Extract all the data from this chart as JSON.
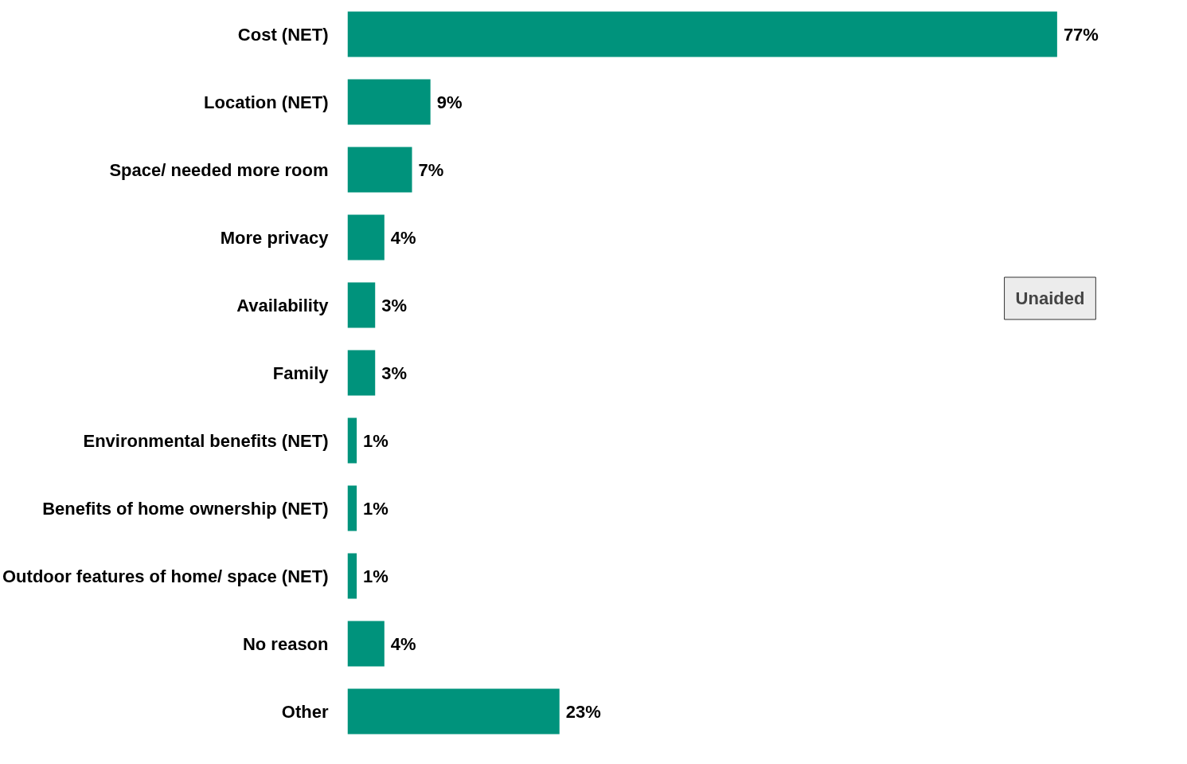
{
  "chart_data": {
    "type": "bar",
    "orientation": "horizontal",
    "categories": [
      "Cost (NET)",
      "Location (NET)",
      "Space/ needed more room",
      "More privacy",
      "Availability",
      "Family",
      "Environmental benefits (NET)",
      "Benefits of home ownership (NET)",
      "Outdoor features of home/ space (NET)",
      "No reason",
      "Other"
    ],
    "values": [
      77,
      9,
      7,
      4,
      3,
      3,
      1,
      1,
      1,
      4,
      23
    ],
    "value_labels": [
      "77%",
      "9%",
      "7%",
      "4%",
      "3%",
      "3%",
      "1%",
      "1%",
      "1%",
      "4%",
      "23%"
    ],
    "color": "#00937c",
    "annotations": [
      "Unaided"
    ],
    "grid": false
  }
}
